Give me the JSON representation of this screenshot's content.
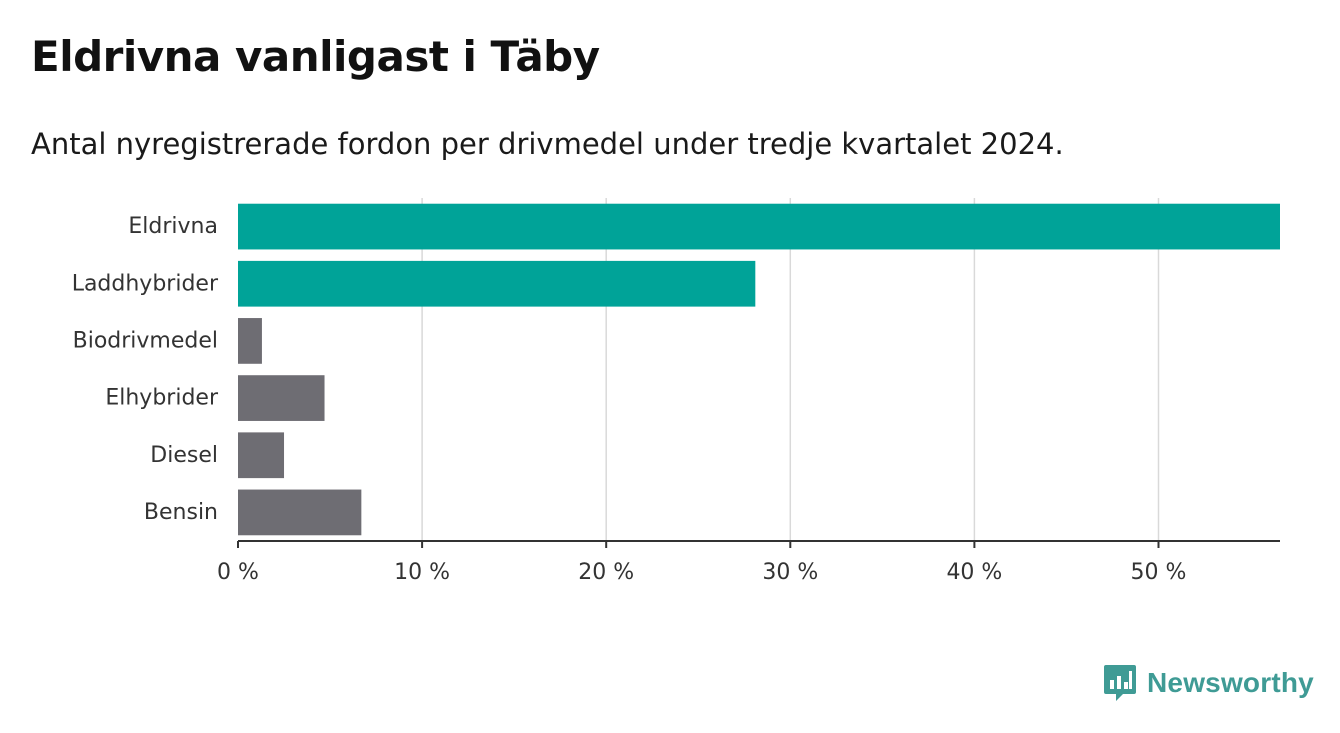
{
  "header": {
    "title": "Eldrivna vanligast i Täby",
    "subtitle": "Antal nyregistrerade fordon per drivmedel under tredje kvartalet 2024."
  },
  "brand": {
    "name": "Newsworthy",
    "icon": "bar-chart-logo-icon",
    "color": "#3f9b95"
  },
  "chart_data": {
    "type": "bar",
    "orientation": "horizontal",
    "title": "",
    "xlabel": "",
    "ylabel": "",
    "categories": [
      "Eldrivna",
      "Laddhybrider",
      "Biodrivmedel",
      "Elhybrider",
      "Diesel",
      "Bensin"
    ],
    "values": [
      56.6,
      28.1,
      1.3,
      4.7,
      2.5,
      6.7
    ],
    "bar_colors": [
      "#00a398",
      "#00a398",
      "#6e6d73",
      "#6e6d73",
      "#6e6d73",
      "#6e6d73"
    ],
    "xlim": [
      0,
      56.6
    ],
    "xticks": [
      0,
      10,
      20,
      30,
      40,
      50
    ],
    "xtick_labels": [
      "0 %",
      "10 %",
      "20 %",
      "30 %",
      "40 %",
      "50 %"
    ],
    "grid": "vertical",
    "legend": "none"
  }
}
